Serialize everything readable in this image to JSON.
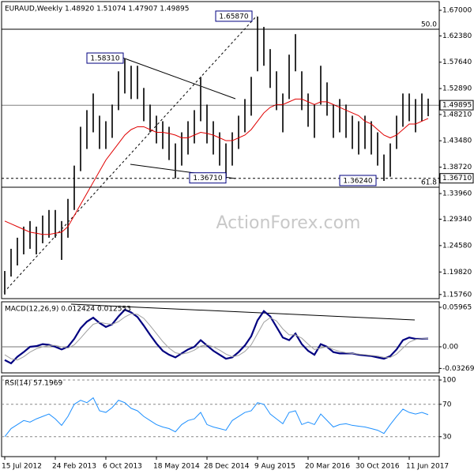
{
  "chart_data": [
    {
      "type": "ohlc",
      "title": "EURAUD,Weekly 1.48920 1.51074 1.47907 1.49895",
      "watermark": "ActionForex.com",
      "categories": [
        "15 Jul 2012",
        null,
        null,
        null,
        null,
        null,
        null,
        null,
        "24 Feb 2013",
        null,
        null,
        null,
        null,
        null,
        null,
        null,
        "6 Oct 2013",
        null,
        null,
        null,
        null,
        null,
        null,
        null,
        "18 May 2014",
        null,
        null,
        null,
        null,
        null,
        null,
        null,
        "28 Dec 2014",
        null,
        null,
        null,
        null,
        null,
        null,
        null,
        "9 Aug 2015",
        null,
        null,
        null,
        null,
        null,
        null,
        null,
        "20 Mar 2016",
        null,
        null,
        null,
        null,
        null,
        null,
        null,
        "30 Oct 2016",
        null,
        null,
        null,
        null,
        null,
        null,
        null,
        "11 Jun 2017",
        null,
        null,
        null
      ],
      "high": [
        1.2,
        1.24,
        1.26,
        1.28,
        1.29,
        1.28,
        1.3,
        1.31,
        1.31,
        1.29,
        1.33,
        1.39,
        1.46,
        1.49,
        1.52,
        1.48,
        1.47,
        1.5,
        1.56,
        1.5831,
        1.57,
        1.57,
        1.53,
        1.5,
        1.48,
        1.47,
        1.46,
        1.43,
        1.45,
        1.47,
        1.49,
        1.55,
        1.5,
        1.47,
        1.45,
        1.43,
        1.45,
        1.48,
        1.51,
        1.55,
        1.6587,
        1.64,
        1.6,
        1.56,
        1.52,
        1.59,
        1.627,
        1.56,
        1.52,
        1.5,
        1.57,
        1.54,
        1.5,
        1.51,
        1.5,
        1.48,
        1.47,
        1.48,
        1.47,
        1.45,
        1.41,
        1.43,
        1.48,
        1.52,
        1.52,
        1.51,
        1.52,
        1.51074
      ],
      "low": [
        1.1576,
        1.19,
        1.21,
        1.23,
        1.24,
        1.23,
        1.25,
        1.26,
        1.26,
        1.22,
        1.26,
        1.31,
        1.38,
        1.42,
        1.45,
        1.42,
        1.42,
        1.44,
        1.49,
        1.52,
        1.51,
        1.51,
        1.47,
        1.45,
        1.43,
        1.42,
        1.4,
        1.3671,
        1.39,
        1.41,
        1.43,
        1.47,
        1.43,
        1.41,
        1.39,
        1.37,
        1.39,
        1.42,
        1.45,
        1.48,
        1.56,
        1.57,
        1.53,
        1.49,
        1.45,
        1.51,
        1.56,
        1.49,
        1.46,
        1.44,
        1.5,
        1.48,
        1.44,
        1.45,
        1.44,
        1.42,
        1.41,
        1.42,
        1.41,
        1.39,
        1.3624,
        1.37,
        1.42,
        1.46,
        1.47,
        1.45,
        1.47,
        1.47907
      ],
      "color": "#303030",
      "ma": {
        "color": "#e00000",
        "values": [
          1.29,
          1.285,
          1.28,
          1.275,
          1.27,
          1.268,
          1.266,
          1.266,
          1.268,
          1.27,
          1.28,
          1.3,
          1.32,
          1.34,
          1.36,
          1.38,
          1.4,
          1.415,
          1.43,
          1.445,
          1.455,
          1.46,
          1.46,
          1.455,
          1.45,
          1.45,
          1.448,
          1.445,
          1.44,
          1.44,
          1.445,
          1.45,
          1.448,
          1.445,
          1.44,
          1.435,
          1.435,
          1.44,
          1.445,
          1.455,
          1.47,
          1.485,
          1.495,
          1.5,
          1.5,
          1.505,
          1.51,
          1.51,
          1.505,
          1.5,
          1.505,
          1.505,
          1.5,
          1.495,
          1.49,
          1.485,
          1.48,
          1.47,
          1.465,
          1.455,
          1.445,
          1.44,
          1.445,
          1.455,
          1.465,
          1.465,
          1.47,
          1.475
        ]
      },
      "ylim": [
        1.1502,
        1.6857
      ],
      "yticks": [
        {
          "value": 1.67,
          "label": "1.67000"
        },
        {
          "value": 1.6238,
          "label": "1.62380"
        },
        {
          "value": 1.5764,
          "label": "1.57640"
        },
        {
          "value": 1.5289,
          "label": "1.52890"
        },
        {
          "value": 1.4821,
          "label": "1.48210"
        },
        {
          "value": 1.4348,
          "label": "1.43480"
        },
        {
          "value": 1.3872,
          "label": "1.38720"
        },
        {
          "value": 1.3396,
          "label": "1.33960"
        },
        {
          "value": 1.2934,
          "label": "1.29340"
        },
        {
          "value": 1.2458,
          "label": "1.24580"
        },
        {
          "value": 1.1982,
          "label": "1.19820"
        },
        {
          "value": 1.1576,
          "label": "1.15760"
        }
      ],
      "levels": [
        {
          "label": "50.0",
          "value": 1.6358
        },
        {
          "label": "61.8",
          "value": 1.351
        }
      ],
      "last_price": {
        "value": 1.49895,
        "label": "1.49895"
      },
      "support": {
        "value": 1.3671,
        "label": "1.36710"
      },
      "annotations": [
        {
          "label": "1.65870",
          "value": 1.6587
        },
        {
          "label": "1.58310",
          "value": 1.5831
        },
        {
          "label": "1.36710",
          "value": 1.3671
        },
        {
          "label": "1.36240",
          "value": 1.3624
        }
      ]
    },
    {
      "type": "line",
      "title": "MACD(12,26,9) 0.012424 0.012553",
      "zero_line": true,
      "series": [
        {
          "color": "#000080",
          "width": 2.2,
          "values": [
            -0.02,
            -0.025,
            -0.015,
            -0.008,
            0.0,
            0.001,
            0.004,
            0.003,
            0.0,
            -0.004,
            0.0,
            0.012,
            0.028,
            0.038,
            0.044,
            0.036,
            0.03,
            0.034,
            0.046,
            0.056,
            0.052,
            0.045,
            0.032,
            0.018,
            0.005,
            -0.006,
            -0.012,
            -0.016,
            -0.01,
            -0.004,
            0.0,
            0.01,
            0.002,
            -0.006,
            -0.012,
            -0.018,
            -0.016,
            -0.008,
            0.002,
            0.016,
            0.04,
            0.054,
            0.046,
            0.03,
            0.014,
            0.01,
            0.02,
            0.004,
            -0.006,
            -0.012,
            0.004,
            0.0,
            -0.008,
            -0.01,
            -0.01,
            -0.01,
            -0.012,
            -0.013,
            -0.014,
            -0.016,
            -0.018,
            -0.014,
            -0.004,
            0.01,
            0.014,
            0.012,
            0.012,
            0.012424
          ]
        },
        {
          "color": "#a0a0a0",
          "width": 1,
          "values": [
            -0.012,
            -0.018,
            -0.02,
            -0.015,
            -0.008,
            -0.003,
            0.0,
            0.002,
            0.002,
            0.0,
            -0.002,
            0.003,
            0.013,
            0.024,
            0.034,
            0.037,
            0.035,
            0.034,
            0.038,
            0.045,
            0.05,
            0.049,
            0.043,
            0.032,
            0.02,
            0.008,
            -0.002,
            -0.009,
            -0.011,
            -0.009,
            -0.005,
            0.001,
            0.003,
            0.0,
            -0.005,
            -0.011,
            -0.015,
            -0.013,
            -0.007,
            0.003,
            0.02,
            0.037,
            0.044,
            0.039,
            0.027,
            0.018,
            0.018,
            0.013,
            0.004,
            -0.004,
            -0.002,
            0.0,
            -0.004,
            -0.007,
            -0.009,
            -0.01,
            -0.011,
            -0.012,
            -0.013,
            -0.014,
            -0.016,
            -0.016,
            -0.011,
            -0.002,
            0.007,
            0.011,
            0.012,
            0.012553
          ]
        }
      ],
      "ylim": [
        -0.0394,
        0.068
      ],
      "yticks": [
        {
          "value": 0.05965,
          "label": "0.05965"
        },
        {
          "value": 0,
          "label": "0.00"
        },
        {
          "value": -0.03269,
          "label": "-0.03269"
        }
      ]
    },
    {
      "type": "line",
      "title": "RSI(14) 57.1969",
      "grid": true,
      "series": [
        {
          "color": "#1e90ff",
          "width": 1,
          "values": [
            30,
            40,
            45,
            50,
            48,
            52,
            55,
            58,
            52,
            44,
            55,
            70,
            75,
            72,
            78,
            62,
            60,
            66,
            75,
            72,
            65,
            62,
            55,
            50,
            45,
            42,
            40,
            36,
            45,
            50,
            52,
            60,
            45,
            42,
            40,
            38,
            50,
            55,
            60,
            62,
            72,
            70,
            58,
            52,
            46,
            60,
            62,
            45,
            48,
            45,
            58,
            50,
            42,
            45,
            46,
            44,
            43,
            42,
            40,
            38,
            34,
            45,
            55,
            64,
            60,
            58,
            60,
            57.1969
          ]
        }
      ],
      "ylim": [
        5.4,
        104.9
      ],
      "yticks": [
        100,
        70,
        30
      ]
    }
  ]
}
